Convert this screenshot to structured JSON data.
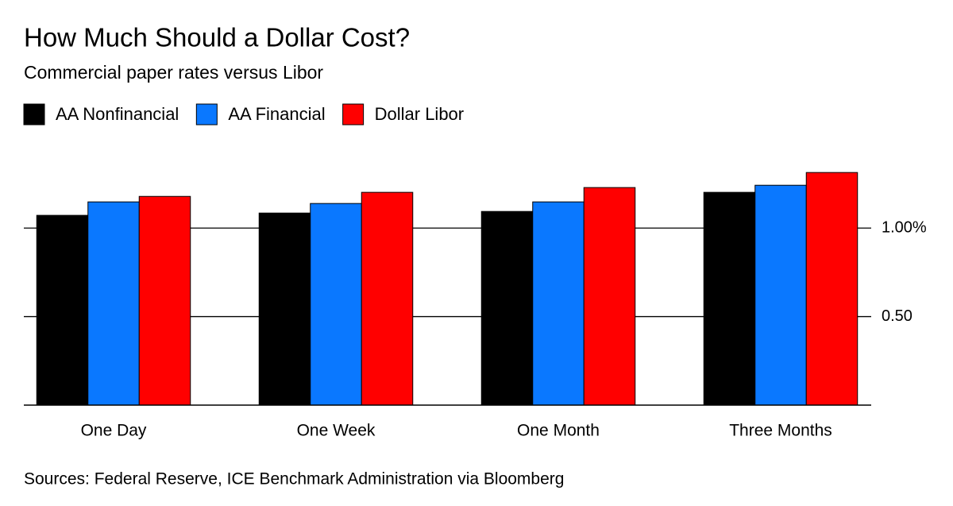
{
  "chart_data": {
    "type": "bar",
    "title": "How Much Should a Dollar Cost?",
    "subtitle": "Commercial paper rates versus Libor",
    "source": "Sources: Federal Reserve, ICE Benchmark Administration via Bloomberg",
    "categories": [
      "One Day",
      "One Week",
      "One Month",
      "Three Months"
    ],
    "series": [
      {
        "name": "AA Nonfinancial",
        "color": "#000000",
        "values": [
          1.072,
          1.085,
          1.094,
          1.202
        ]
      },
      {
        "name": "AA Financial",
        "color": "#0a78ff",
        "values": [
          1.148,
          1.139,
          1.148,
          1.242
        ]
      },
      {
        "name": "Dollar Libor",
        "color": "#ff0000",
        "values": [
          1.179,
          1.202,
          1.229,
          1.314
        ]
      }
    ],
    "ylim": [
      0,
      1.4
    ],
    "yticks": [
      {
        "value": 0.5,
        "label": "0.50"
      },
      {
        "value": 1,
        "label": "1.00%"
      }
    ],
    "grid": true
  }
}
